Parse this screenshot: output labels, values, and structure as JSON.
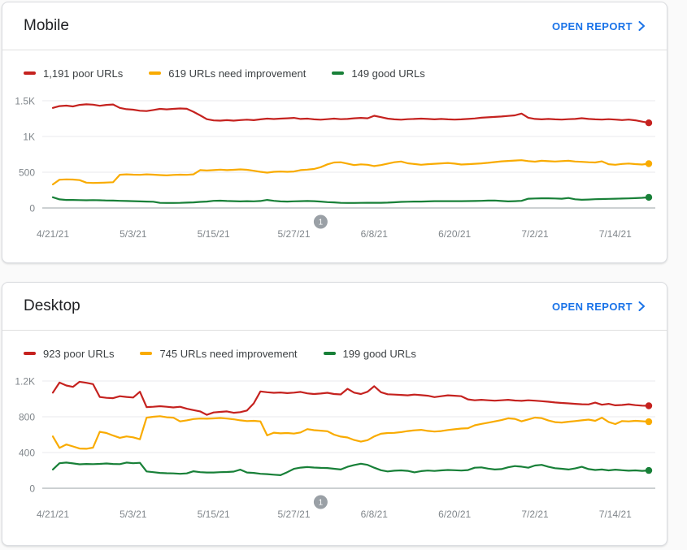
{
  "colors": {
    "poor": "#c5221f",
    "needs_improvement": "#f9ab00",
    "good": "#188038",
    "link": "#1a73e8",
    "title_text": "#202124",
    "legend_text": "#3c4043",
    "axis_text": "#80868b",
    "gridline": "#e8eaed",
    "axis_line": "#9aa0a6",
    "marker_bg": "#9aa0a6",
    "card_border": "#dadce0",
    "page_bg": "#fafafa"
  },
  "cards": [
    {
      "title": "Mobile",
      "open_report_label": "OPEN REPORT",
      "legend": [
        {
          "label": "1,191 poor URLs"
        },
        {
          "label": "619 URLs need improvement"
        },
        {
          "label": "149 good URLs"
        }
      ],
      "chart_data": {
        "type": "line",
        "x_tick_labels": [
          "4/21/21",
          "5/3/21",
          "5/15/21",
          "5/27/21",
          "6/8/21",
          "6/20/21",
          "7/2/21",
          "7/14/21"
        ],
        "x_tick_days": [
          0,
          12,
          24,
          36,
          48,
          60,
          72,
          84
        ],
        "y_tick_labels": [
          "0",
          "500",
          "1K",
          "1.5K"
        ],
        "y_max": 1500,
        "grid": true,
        "legend_position": "top",
        "marker": {
          "label": "1",
          "day": 40
        },
        "series": [
          {
            "name": "poor URLs",
            "color": "#c5221f",
            "end_value": 1191,
            "values": [
              1400,
              1425,
              1432,
              1420,
              1442,
              1450,
              1445,
              1430,
              1442,
              1448,
              1400,
              1382,
              1375,
              1360,
              1356,
              1370,
              1386,
              1380,
              1386,
              1392,
              1388,
              1345,
              1295,
              1242,
              1225,
              1222,
              1228,
              1222,
              1230,
              1235,
              1228,
              1240,
              1250,
              1244,
              1250,
              1255,
              1260,
              1245,
              1250,
              1240,
              1235,
              1242,
              1250,
              1242,
              1246,
              1254,
              1260,
              1255,
              1290,
              1270,
              1250,
              1240,
              1235,
              1242,
              1246,
              1250,
              1245,
              1240,
              1246,
              1240,
              1236,
              1240,
              1246,
              1252,
              1262,
              1268,
              1274,
              1280,
              1288,
              1295,
              1320,
              1262,
              1246,
              1240,
              1246,
              1240,
              1236,
              1242,
              1246,
              1256,
              1246,
              1240,
              1236,
              1242,
              1236,
              1230,
              1236,
              1226,
              1208,
              1191
            ]
          },
          {
            "name": "URLs need improvement",
            "color": "#f9ab00",
            "end_value": 619,
            "values": [
              330,
              395,
              400,
              398,
              390,
              355,
              350,
              352,
              356,
              360,
              465,
              470,
              466,
              464,
              470,
              466,
              460,
              456,
              462,
              466,
              464,
              470,
              530,
              524,
              530,
              536,
              530,
              534,
              540,
              534,
              520,
              506,
              494,
              506,
              510,
              506,
              510,
              530,
              536,
              545,
              570,
              610,
              636,
              640,
              620,
              600,
              610,
              604,
              586,
              600,
              620,
              640,
              650,
              625,
              615,
              605,
              612,
              618,
              624,
              630,
              620,
              608,
              612,
              618,
              624,
              632,
              642,
              652,
              658,
              664,
              668,
              656,
              648,
              660,
              655,
              650,
              656,
              660,
              650,
              645,
              640,
              636,
              652,
              612,
              605,
              616,
              622,
              614,
              608,
              619
            ]
          },
          {
            "name": "good URLs",
            "color": "#188038",
            "end_value": 149,
            "values": [
              150,
              120,
              112,
              112,
              110,
              108,
              110,
              108,
              105,
              103,
              100,
              98,
              95,
              92,
              90,
              88,
              72,
              70,
              70,
              72,
              75,
              78,
              85,
              90,
              100,
              102,
              98,
              95,
              92,
              95,
              93,
              98,
              112,
              100,
              92,
              90,
              93,
              95,
              98,
              95,
              90,
              82,
              78,
              72,
              70,
              70,
              72,
              73,
              73,
              73,
              75,
              80,
              85,
              88,
              90,
              90,
              92,
              95,
              95,
              95,
              95,
              96,
              97,
              98,
              100,
              103,
              105,
              98,
              92,
              95,
              100,
              130,
              133,
              135,
              135,
              133,
              130,
              140,
              122,
              115,
              118,
              123,
              125,
              127,
              130,
              132,
              134,
              138,
              142,
              149
            ]
          }
        ]
      }
    },
    {
      "title": "Desktop",
      "open_report_label": "OPEN REPORT",
      "legend": [
        {
          "label": "923 poor URLs"
        },
        {
          "label": "745 URLs need improvement"
        },
        {
          "label": "199 good URLs"
        }
      ],
      "chart_data": {
        "type": "line",
        "x_tick_labels": [
          "4/21/21",
          "5/3/21",
          "5/15/21",
          "5/27/21",
          "6/8/21",
          "6/20/21",
          "7/2/21",
          "7/14/21"
        ],
        "x_tick_days": [
          0,
          12,
          24,
          36,
          48,
          60,
          72,
          84
        ],
        "y_tick_labels": [
          "0",
          "400",
          "800",
          "1.2K"
        ],
        "y_max": 1200,
        "grid": true,
        "legend_position": "top",
        "marker": {
          "label": "1",
          "day": 40
        },
        "series": [
          {
            "name": "poor URLs",
            "color": "#c5221f",
            "end_value": 923,
            "values": [
              1070,
              1183,
              1150,
              1135,
              1192,
              1180,
              1165,
              1022,
              1012,
              1008,
              1030,
              1022,
              1015,
              1080,
              908,
              912,
              918,
              912,
              905,
              912,
              890,
              875,
              860,
              822,
              848,
              855,
              860,
              845,
              852,
              870,
              950,
              1084,
              1075,
              1068,
              1072,
              1065,
              1070,
              1078,
              1062,
              1055,
              1060,
              1068,
              1055,
              1050,
              1113,
              1070,
              1055,
              1080,
              1142,
              1075,
              1052,
              1048,
              1045,
              1040,
              1048,
              1042,
              1035,
              1020,
              1030,
              1040,
              1035,
              1030,
              995,
              985,
              990,
              985,
              980,
              985,
              990,
              982,
              978,
              985,
              980,
              975,
              968,
              960,
              955,
              950,
              945,
              940,
              938,
              958,
              935,
              945,
              928,
              932,
              940,
              930,
              925,
              923
            ]
          },
          {
            "name": "URLs need improvement",
            "color": "#f9ab00",
            "end_value": 745,
            "values": [
              580,
              452,
              490,
              468,
              445,
              442,
              455,
              632,
              618,
              590,
              565,
              580,
              570,
              548,
              790,
              800,
              806,
              795,
              790,
              748,
              760,
              775,
              780,
              778,
              782,
              786,
              780,
              772,
              760,
              752,
              755,
              748,
              592,
              622,
              615,
              618,
              612,
              625,
              662,
              650,
              645,
              638,
              600,
              578,
              568,
              540,
              522,
              538,
              580,
              610,
              618,
              620,
              628,
              640,
              648,
              654,
              642,
              635,
              640,
              652,
              660,
              668,
              672,
              705,
              720,
              734,
              748,
              763,
              783,
              776,
              749,
              770,
              791,
              785,
              758,
              740,
              735,
              745,
              752,
              760,
              768,
              755,
              790,
              742,
              718,
              752,
              748,
              755,
              750,
              745
            ]
          },
          {
            "name": "good URLs",
            "color": "#188038",
            "end_value": 199,
            "values": [
              210,
              280,
              287,
              278,
              268,
              272,
              270,
              273,
              277,
              272,
              270,
              287,
              280,
              285,
              188,
              180,
              172,
              168,
              166,
              162,
              166,
              190,
              180,
              176,
              176,
              180,
              182,
              186,
              208,
              176,
              172,
              162,
              158,
              152,
              146,
              180,
              217,
              231,
              237,
              232,
              228,
              226,
              218,
              210,
              240,
              260,
              275,
              262,
              230,
              202,
              188,
              196,
              200,
              195,
              178,
              192,
              198,
              194,
              200,
              205,
              202,
              198,
              204,
              230,
              234,
              220,
              210,
              215,
              235,
              248,
              242,
              230,
              255,
              262,
              240,
              225,
              218,
              210,
              222,
              240,
              215,
              205,
              210,
              200,
              208,
              202,
              196,
              200,
              195,
              199
            ]
          }
        ]
      }
    }
  ]
}
